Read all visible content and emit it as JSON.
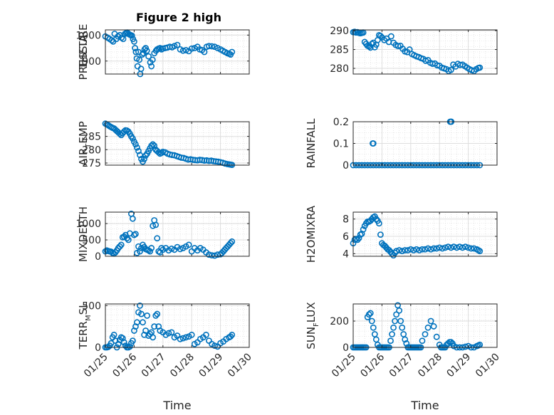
{
  "figure_title": "Figure 2 high",
  "x_ticks": [
    "01/25",
    "01/26",
    "01/27",
    "01/28",
    "01/29",
    "01/30"
  ],
  "x_label": "Time",
  "series_color": "#0072BD",
  "chart_data": [
    {
      "type": "scatter",
      "ylabel": "PRESSURE",
      "xlabel": "",
      "grid": true,
      "xlim": [
        0,
        5
      ],
      "ylim": [
        850,
        1020
      ],
      "yticks": [
        900,
        1000
      ],
      "x": [
        0.0,
        0.08,
        0.15,
        0.22,
        0.27,
        0.32,
        0.38,
        0.44,
        0.5,
        0.56,
        0.62,
        0.68,
        0.72,
        0.76,
        0.8,
        0.84,
        0.88,
        0.92,
        0.96,
        1.0,
        1.03,
        1.06,
        1.09,
        1.12,
        1.15,
        1.18,
        1.21,
        1.24,
        1.28,
        1.32,
        1.36,
        1.4,
        1.44,
        1.5,
        1.56,
        1.6,
        1.64,
        1.7,
        1.76,
        1.8,
        1.85,
        1.9,
        1.95,
        2.0,
        2.08,
        2.16,
        2.24,
        2.32,
        2.4,
        2.5,
        2.6,
        2.7,
        2.8,
        2.9,
        3.0,
        3.1,
        3.2,
        3.28,
        3.36,
        3.44,
        3.52,
        3.6,
        3.7,
        3.8,
        3.9,
        4.0,
        4.08,
        4.16,
        4.24,
        4.3,
        4.35,
        4.4
      ],
      "y": [
        995,
        990,
        985,
        980,
        975,
        1005,
        985,
        995,
        1000,
        990,
        985,
        1005,
        1008,
        1010,
        1005,
        1002,
        1000,
        998,
        985,
        975,
        950,
        935,
        910,
        880,
        935,
        905,
        850,
        870,
        925,
        930,
        945,
        950,
        940,
        918,
        895,
        880,
        905,
        930,
        940,
        945,
        948,
        950,
        945,
        948,
        950,
        952,
        955,
        953,
        958,
        962,
        945,
        940,
        942,
        938,
        948,
        950,
        955,
        945,
        942,
        935,
        955,
        958,
        957,
        955,
        950,
        945,
        940,
        935,
        930,
        928,
        925,
        935
      ]
    },
    {
      "type": "scatter",
      "ylabel": "THETA",
      "xlabel": "",
      "grid": true,
      "xlim": [
        0,
        5
      ],
      "ylim": [
        278.5,
        290.2
      ],
      "yticks": [
        280,
        285,
        290
      ],
      "x": [
        0.0,
        0.05,
        0.1,
        0.15,
        0.2,
        0.25,
        0.3,
        0.35,
        0.4,
        0.45,
        0.5,
        0.55,
        0.6,
        0.65,
        0.7,
        0.75,
        0.8,
        0.85,
        0.9,
        0.95,
        1.0,
        1.08,
        1.16,
        1.24,
        1.32,
        1.4,
        1.48,
        1.56,
        1.64,
        1.72,
        1.8,
        1.88,
        1.96,
        2.04,
        2.12,
        2.2,
        2.28,
        2.36,
        2.44,
        2.52,
        2.6,
        2.68,
        2.76,
        2.84,
        2.92,
        3.0,
        3.08,
        3.16,
        3.24,
        3.32,
        3.4,
        3.48,
        3.56,
        3.64,
        3.72,
        3.8,
        3.88,
        3.96,
        4.04,
        4.12,
        4.2,
        4.28,
        4.35,
        4.4
      ],
      "y": [
        289.6,
        289.7,
        289.5,
        289.6,
        289.4,
        289.3,
        289.4,
        289.5,
        287,
        286.5,
        286,
        285.8,
        285.5,
        286.5,
        286.8,
        285.6,
        286.3,
        287.5,
        288.8,
        288.6,
        288.2,
        287.5,
        287.9,
        287,
        288.5,
        286.8,
        286.2,
        285.9,
        286,
        285.2,
        284.5,
        284.3,
        285,
        283.8,
        283.5,
        283.2,
        283,
        282.7,
        282.5,
        282,
        282.2,
        281.5,
        281.2,
        281.3,
        280.8,
        280.7,
        280.2,
        280,
        279.8,
        279.3,
        279.6,
        281,
        280.5,
        281.2,
        280.9,
        281,
        280.6,
        280.2,
        279.8,
        279.5,
        279.3,
        279.8,
        280.1,
        280.2
      ]
    },
    {
      "type": "scatter",
      "ylabel": "AIR_TEMP",
      "xlabel": "",
      "grid": true,
      "xlim": [
        0,
        5
      ],
      "ylim": [
        274.2,
        290.5
      ],
      "yticks": [
        275,
        280,
        285
      ],
      "x": [
        0.0,
        0.05,
        0.1,
        0.15,
        0.2,
        0.25,
        0.3,
        0.35,
        0.4,
        0.45,
        0.5,
        0.55,
        0.6,
        0.65,
        0.7,
        0.75,
        0.8,
        0.85,
        0.9,
        0.95,
        1.0,
        1.05,
        1.1,
        1.15,
        1.2,
        1.25,
        1.3,
        1.35,
        1.4,
        1.45,
        1.5,
        1.55,
        1.6,
        1.65,
        1.7,
        1.75,
        1.8,
        1.85,
        1.9,
        1.95,
        2.0,
        2.08,
        2.16,
        2.24,
        2.32,
        2.4,
        2.48,
        2.56,
        2.64,
        2.72,
        2.8,
        2.88,
        2.96,
        3.04,
        3.12,
        3.2,
        3.28,
        3.36,
        3.44,
        3.52,
        3.6,
        3.68,
        3.76,
        3.84,
        3.92,
        4.0,
        4.08,
        4.16,
        4.24,
        4.3,
        4.35,
        4.4
      ],
      "y": [
        289.8,
        289.5,
        289.2,
        288.8,
        288.5,
        288.2,
        288,
        287.5,
        287,
        286.5,
        286,
        285.5,
        286.2,
        286.8,
        287.3,
        287.2,
        286.8,
        286,
        285,
        284.2,
        283,
        282,
        280.8,
        279.5,
        278,
        276.5,
        275.5,
        276.5,
        277.8,
        278.5,
        279.5,
        280.5,
        281.5,
        282,
        281.5,
        280,
        279.5,
        279,
        278.5,
        278.8,
        279.2,
        279,
        278.5,
        278.2,
        278,
        277.9,
        277.6,
        277.3,
        277,
        276.9,
        276.6,
        276.3,
        276.4,
        276.2,
        276.1,
        276,
        276.2,
        276.1,
        275.9,
        276,
        275.8,
        275.9,
        275.7,
        275.6,
        275.5,
        275.3,
        275.1,
        274.8,
        274.6,
        274.5,
        274.4,
        274.3
      ]
    },
    {
      "type": "scatter",
      "ylabel": "RAINFALL",
      "xlabel": "",
      "grid": true,
      "xlim": [
        0,
        5
      ],
      "ylim": [
        0,
        0.2
      ],
      "yticks": [
        0,
        0.1,
        0.2
      ],
      "x": [
        0.0,
        0.1,
        0.2,
        0.3,
        0.4,
        0.5,
        0.6,
        0.7,
        0.8,
        0.9,
        1.0,
        1.1,
        1.2,
        1.3,
        1.4,
        1.5,
        1.6,
        1.7,
        1.8,
        1.9,
        2.0,
        2.1,
        2.2,
        2.3,
        2.4,
        2.5,
        2.6,
        2.7,
        2.8,
        2.9,
        3.0,
        3.1,
        3.2,
        3.3,
        3.4,
        3.5,
        3.6,
        3.7,
        3.8,
        3.9,
        4.0,
        4.1,
        4.2,
        4.3,
        4.4,
        0.68,
        0.7,
        3.37,
        3.39,
        3.41
      ],
      "y": [
        0,
        0,
        0,
        0,
        0,
        0,
        0,
        0,
        0,
        0,
        0,
        0,
        0,
        0,
        0,
        0,
        0,
        0,
        0,
        0,
        0,
        0,
        0,
        0,
        0,
        0,
        0,
        0,
        0,
        0,
        0,
        0,
        0,
        0,
        0,
        0,
        0,
        0,
        0,
        0,
        0,
        0,
        0,
        0,
        0,
        0.1,
        0.1,
        0.2,
        0.2,
        0.2
      ]
    },
    {
      "type": "scatter",
      "ylabel": "MIXDEPTH",
      "xlabel": "",
      "grid": true,
      "xlim": [
        0,
        5
      ],
      "ylim": [
        0,
        1350
      ],
      "yticks": [
        0,
        500,
        1000
      ],
      "x": [
        0.0,
        0.05,
        0.1,
        0.15,
        0.2,
        0.25,
        0.3,
        0.35,
        0.4,
        0.45,
        0.5,
        0.55,
        0.6,
        0.65,
        0.7,
        0.75,
        0.8,
        0.85,
        0.9,
        0.95,
        1.0,
        1.05,
        1.1,
        1.15,
        1.2,
        1.25,
        1.3,
        1.35,
        1.4,
        1.45,
        1.5,
        1.55,
        1.6,
        1.65,
        1.7,
        1.75,
        1.8,
        1.85,
        1.9,
        1.95,
        2.0,
        2.1,
        2.2,
        2.3,
        2.4,
        2.5,
        2.6,
        2.7,
        2.8,
        2.9,
        3.0,
        3.1,
        3.2,
        3.3,
        3.4,
        3.5,
        3.6,
        3.7,
        3.8,
        3.9,
        4.0,
        4.05,
        4.1,
        4.15,
        4.2,
        4.25,
        4.3,
        4.35,
        4.4
      ],
      "y": [
        150,
        180,
        160,
        150,
        140,
        100,
        80,
        120,
        180,
        250,
        300,
        350,
        580,
        600,
        650,
        550,
        500,
        700,
        1300,
        1150,
        650,
        680,
        100,
        300,
        150,
        250,
        350,
        280,
        220,
        200,
        180,
        150,
        250,
        930,
        1100,
        960,
        550,
        150,
        120,
        250,
        200,
        250,
        180,
        230,
        200,
        280,
        220,
        250,
        300,
        350,
        150,
        250,
        180,
        250,
        200,
        120,
        50,
        30,
        20,
        50,
        60,
        100,
        150,
        200,
        250,
        300,
        350,
        400,
        450
      ]
    },
    {
      "type": "scatter",
      "ylabel": "H2OMIXRA",
      "xlabel": "",
      "grid": true,
      "xlim": [
        0,
        5
      ],
      "ylim": [
        3.7,
        8.8
      ],
      "yticks": [
        4,
        6,
        8
      ],
      "x": [
        0.0,
        0.05,
        0.1,
        0.15,
        0.2,
        0.25,
        0.3,
        0.35,
        0.4,
        0.45,
        0.5,
        0.55,
        0.6,
        0.65,
        0.7,
        0.75,
        0.8,
        0.85,
        0.9,
        0.95,
        1.0,
        1.05,
        1.1,
        1.15,
        1.2,
        1.25,
        1.3,
        1.35,
        1.4,
        1.45,
        1.5,
        1.6,
        1.7,
        1.8,
        1.9,
        2.0,
        2.1,
        2.2,
        2.3,
        2.4,
        2.5,
        2.6,
        2.7,
        2.8,
        2.9,
        3.0,
        3.1,
        3.2,
        3.3,
        3.4,
        3.5,
        3.6,
        3.7,
        3.8,
        3.9,
        4.0,
        4.1,
        4.2,
        4.3,
        4.35,
        4.4
      ],
      "y": [
        5.2,
        5.6,
        5.7,
        5.6,
        5.8,
        6.2,
        6.3,
        6.8,
        7.2,
        7.5,
        7.7,
        7.7,
        7.8,
        8.0,
        8.2,
        8.3,
        8.0,
        7.8,
        7.5,
        6.2,
        5.2,
        5.0,
        4.9,
        4.7,
        4.5,
        4.4,
        4.2,
        4.0,
        3.8,
        4.1,
        4.3,
        4.4,
        4.3,
        4.4,
        4.4,
        4.5,
        4.4,
        4.5,
        4.4,
        4.5,
        4.5,
        4.6,
        4.5,
        4.6,
        4.6,
        4.7,
        4.6,
        4.7,
        4.8,
        4.7,
        4.8,
        4.7,
        4.8,
        4.7,
        4.8,
        4.7,
        4.6,
        4.6,
        4.5,
        4.4,
        4.3
      ]
    },
    {
      "type": "scatter",
      "ylabel": "TERR_MSL",
      "xlabel": "Time",
      "grid": true,
      "xlim": [
        0,
        5
      ],
      "ylim": [
        0,
        520
      ],
      "yticks": [
        0,
        500
      ],
      "x": [
        0.0,
        0.05,
        0.1,
        0.15,
        0.2,
        0.25,
        0.3,
        0.35,
        0.4,
        0.45,
        0.5,
        0.55,
        0.6,
        0.65,
        0.7,
        0.75,
        0.8,
        0.85,
        0.9,
        0.95,
        1.0,
        1.05,
        1.1,
        1.15,
        1.2,
        1.25,
        1.3,
        1.35,
        1.4,
        1.45,
        1.5,
        1.55,
        1.6,
        1.65,
        1.7,
        1.75,
        1.8,
        1.85,
        1.9,
        2.0,
        2.1,
        2.2,
        2.3,
        2.4,
        2.5,
        2.6,
        2.7,
        2.8,
        2.9,
        3.0,
        3.1,
        3.2,
        3.3,
        3.4,
        3.5,
        3.6,
        3.7,
        3.8,
        3.9,
        4.0,
        4.1,
        4.2,
        4.3,
        4.35,
        4.4
      ],
      "y": [
        0,
        0,
        5,
        20,
        50,
        120,
        150,
        80,
        0,
        40,
        90,
        120,
        110,
        60,
        20,
        0,
        0,
        10,
        50,
        80,
        200,
        250,
        300,
        420,
        500,
        400,
        300,
        150,
        200,
        380,
        140,
        160,
        180,
        120,
        250,
        380,
        400,
        250,
        200,
        180,
        150,
        170,
        180,
        120,
        140,
        100,
        110,
        120,
        130,
        150,
        40,
        60,
        100,
        120,
        150,
        80,
        40,
        20,
        10,
        50,
        70,
        100,
        120,
        130,
        150
      ]
    },
    {
      "type": "scatter",
      "ylabel": "SUN_FLUX",
      "xlabel": "Time",
      "grid": true,
      "xlim": [
        0,
        5
      ],
      "ylim": [
        0,
        330
      ],
      "yticks": [
        0,
        200
      ],
      "x": [
        0.0,
        0.05,
        0.1,
        0.15,
        0.2,
        0.25,
        0.3,
        0.35,
        0.4,
        0.45,
        0.5,
        0.55,
        0.6,
        0.65,
        0.7,
        0.75,
        0.8,
        0.85,
        0.9,
        0.95,
        1.0,
        1.05,
        1.1,
        1.15,
        1.2,
        1.25,
        1.3,
        1.35,
        1.4,
        1.45,
        1.5,
        1.55,
        1.6,
        1.65,
        1.7,
        1.75,
        1.8,
        1.85,
        1.9,
        1.95,
        2.0,
        2.05,
        2.1,
        2.15,
        2.2,
        2.25,
        2.3,
        2.35,
        2.4,
        2.5,
        2.6,
        2.7,
        2.8,
        2.9,
        3.0,
        3.05,
        3.1,
        3.15,
        3.2,
        3.25,
        3.3,
        3.35,
        3.4,
        3.45,
        3.5,
        3.6,
        3.7,
        3.8,
        3.9,
        4.0,
        4.1,
        4.2,
        4.3,
        4.35,
        4.4
      ],
      "y": [
        0,
        0,
        0,
        0,
        0,
        0,
        0,
        0,
        0,
        0,
        230,
        250,
        260,
        200,
        150,
        100,
        60,
        20,
        0,
        0,
        0,
        0,
        0,
        0,
        0,
        0,
        50,
        100,
        150,
        200,
        250,
        320,
        280,
        200,
        150,
        100,
        60,
        30,
        0,
        0,
        0,
        0,
        0,
        0,
        0,
        0,
        0,
        0,
        50,
        100,
        150,
        200,
        160,
        80,
        20,
        0,
        0,
        0,
        0,
        20,
        30,
        40,
        40,
        30,
        10,
        0,
        0,
        0,
        5,
        10,
        0,
        0,
        10,
        15,
        20
      ]
    }
  ]
}
